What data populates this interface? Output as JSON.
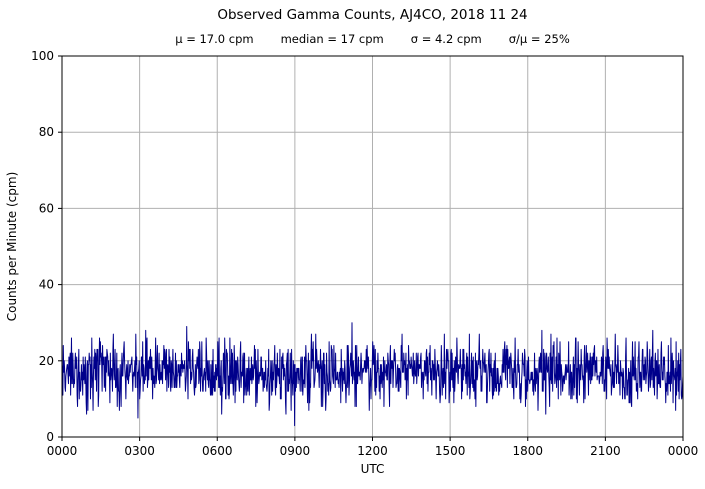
{
  "chart_data": {
    "type": "line",
    "title": "Observed Gamma Counts, AJ4CO, 2018 11 24",
    "stats_items": [
      "μ = 17.0 cpm",
      "median = 17 cpm",
      "σ = 4.2 cpm",
      "σ/μ = 25%"
    ],
    "stats": {
      "mean_cpm": 17.0,
      "median_cpm": 17,
      "sigma_cpm": 4.2,
      "sigma_over_mu_pct": 25
    },
    "xlabel": "UTC",
    "ylabel": "Counts per Minute (cpm)",
    "ylim": [
      0,
      100
    ],
    "yticks": [
      0,
      20,
      40,
      60,
      80,
      100
    ],
    "xtick_labels": [
      "0000",
      "0300",
      "0600",
      "0900",
      "1200",
      "1500",
      "1800",
      "2100",
      "0000"
    ],
    "grid": true,
    "legend": "none",
    "line_color": "#00008B",
    "grid_color": "#b0b0b0",
    "axis_color": "#000000",
    "series": {
      "name": "observed-gamma-counts",
      "units": "cpm",
      "n_points": 1440,
      "values_are_integers": true,
      "generator": {
        "distribution": "gaussian",
        "mean": 17.0,
        "sigma": 4.2,
        "clip_min": 2,
        "clip_max": 33,
        "seed": 20181124
      }
    }
  }
}
